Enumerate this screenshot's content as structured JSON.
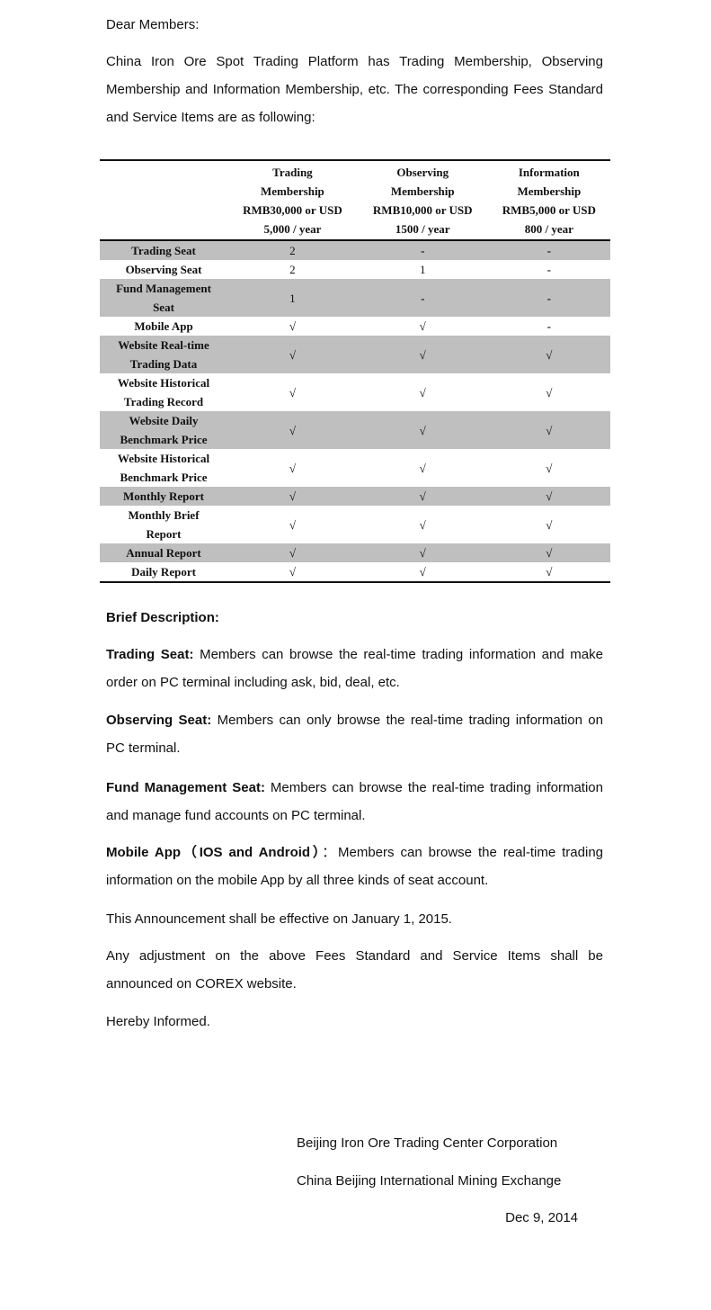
{
  "greeting": "Dear Members:",
  "intro": "China Iron Ore Spot Trading Platform has Trading Membership, Observing Membership and Information Membership, etc. The corresponding Fees Standard and Service Items are as following:",
  "table": {
    "headers": [
      {
        "line1": "Trading",
        "line2": "Membership",
        "line3": "RMB30,000 or USD",
        "line4": "5,000 / year"
      },
      {
        "line1": "Observing",
        "line2": "Membership",
        "line3": "RMB10,000 or USD",
        "line4": "1500 / year"
      },
      {
        "line1": "Information",
        "line2": "Membership",
        "line3": "RMB5,000 or USD",
        "line4": "800 / year"
      }
    ],
    "rows": [
      {
        "label": "Trading Seat",
        "values": [
          "2",
          "-",
          "-"
        ],
        "shaded": true
      },
      {
        "label": "Observing Seat",
        "values": [
          "2",
          "1",
          "-"
        ],
        "shaded": false
      },
      {
        "label": "Fund Management Seat",
        "values": [
          "1",
          "-",
          "-"
        ],
        "shaded": true
      },
      {
        "label": "Mobile App",
        "values": [
          "√",
          "√",
          "-"
        ],
        "shaded": false
      },
      {
        "label": "Website Real-time Trading Data",
        "values": [
          "√",
          "√",
          "√"
        ],
        "shaded": true
      },
      {
        "label": "Website Historical Trading Record",
        "values": [
          "√",
          "√",
          "√"
        ],
        "shaded": false
      },
      {
        "label": "Website Daily Benchmark Price",
        "values": [
          "√",
          "√",
          "√"
        ],
        "shaded": true
      },
      {
        "label": "Website Historical Benchmark Price",
        "values": [
          "√",
          "√",
          "√"
        ],
        "shaded": false
      },
      {
        "label": "Monthly Report",
        "values": [
          "√",
          "√",
          "√"
        ],
        "shaded": true
      },
      {
        "label": "Monthly Brief Report",
        "values": [
          "√",
          "√",
          "√"
        ],
        "shaded": false
      },
      {
        "label": "Annual Report",
        "values": [
          "√",
          "√",
          "√"
        ],
        "shaded": true
      },
      {
        "label": "Daily Report",
        "values": [
          "√",
          "√",
          "√"
        ],
        "shaded": false
      }
    ],
    "shade_color": "#bfbfbf"
  },
  "description": {
    "heading": "Brief Description:",
    "items": [
      {
        "term": "Trading Seat:",
        "text": " Members can browse the real-time trading information and make order on PC terminal including ask, bid, deal, etc."
      },
      {
        "term": "Observing Seat:",
        "text": " Members can only browse the real-time trading information on PC terminal."
      },
      {
        "term": "Fund Management Seat:",
        "text": " Members can browse the real-time trading information and manage fund accounts on PC terminal."
      },
      {
        "term": "Mobile App（IOS and Android）",
        "text": "：Members can browse the real-time trading information on the mobile App by all three kinds of seat account."
      }
    ]
  },
  "effective": "This Announcement shall be effective on January 1, 2015.",
  "adjustment": "Any adjustment on the above Fees Standard and Service Items shall be announced on COREX website.",
  "closing": "Hereby Informed.",
  "signature": {
    "org1": "Beijing Iron Ore Trading Center Corporation",
    "org2": "China Beijing International Mining Exchange",
    "date": "Dec 9, 2014"
  }
}
